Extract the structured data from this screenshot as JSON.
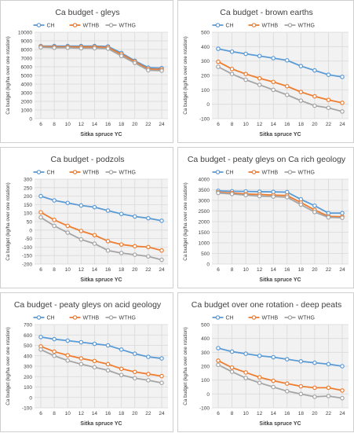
{
  "colors": {
    "CH": "#5b9bd5",
    "WTHB": "#ed7d31",
    "WTHG": "#a5a5a5",
    "grid": "#d9d9d9",
    "plot_bg": "#f2f2f2"
  },
  "chart_data": [
    {
      "type": "line",
      "title": "Ca budget - gleys",
      "xlabel": "Sitka spruce YC",
      "ylabel": "Ca budget (kg/ha over one rotation)",
      "x": [
        6,
        8,
        10,
        12,
        14,
        16,
        18,
        20,
        22,
        24
      ],
      "yticks": [
        0,
        1000,
        2000,
        3000,
        4000,
        5000,
        6000,
        7000,
        8000,
        9000,
        10000
      ],
      "ylim": [
        0,
        10000
      ],
      "legend": "top",
      "grid": true,
      "series": [
        {
          "name": "CH",
          "values": [
            8400,
            8400,
            8400,
            8400,
            8400,
            8350,
            7600,
            6700,
            5900,
            5850
          ]
        },
        {
          "name": "WTHB",
          "values": [
            8350,
            8300,
            8300,
            8300,
            8300,
            8250,
            7450,
            6600,
            5750,
            5700
          ]
        },
        {
          "name": "WTHG",
          "values": [
            8250,
            8200,
            8200,
            8150,
            8150,
            8100,
            7250,
            6450,
            5600,
            5550
          ]
        }
      ]
    },
    {
      "type": "line",
      "title": "Ca budget - brown earths",
      "xlabel": "Sitka spruce YC",
      "ylabel": "Ca budget (kg/ha over one rotation)",
      "x": [
        6,
        8,
        10,
        12,
        14,
        16,
        18,
        20,
        22,
        24
      ],
      "yticks": [
        -100,
        0,
        100,
        200,
        300,
        400,
        500
      ],
      "ylim": [
        -100,
        500
      ],
      "legend": "top",
      "grid": true,
      "series": [
        {
          "name": "CH",
          "values": [
            385,
            365,
            350,
            335,
            320,
            305,
            265,
            235,
            205,
            190
          ]
        },
        {
          "name": "WTHB",
          "values": [
            295,
            245,
            210,
            180,
            155,
            125,
            85,
            55,
            30,
            10
          ]
        },
        {
          "name": "WTHG",
          "values": [
            260,
            210,
            170,
            135,
            100,
            65,
            25,
            -10,
            -25,
            -50
          ]
        }
      ]
    },
    {
      "type": "line",
      "title": "Ca budget - podzols",
      "xlabel": "Sitka spruce YC",
      "ylabel": "Ca budget (kg/ha over one rotation)",
      "x": [
        6,
        8,
        10,
        12,
        14,
        16,
        18,
        20,
        22,
        24
      ],
      "yticks": [
        -200,
        -150,
        -100,
        -50,
        0,
        50,
        100,
        150,
        200,
        250,
        300
      ],
      "ylim": [
        -200,
        300
      ],
      "legend": "top",
      "grid": true,
      "series": [
        {
          "name": "CH",
          "values": [
            200,
            175,
            160,
            145,
            135,
            115,
            95,
            80,
            70,
            55
          ]
        },
        {
          "name": "WTHB",
          "values": [
            105,
            60,
            25,
            -5,
            -30,
            -65,
            -85,
            -95,
            -100,
            -120
          ]
        },
        {
          "name": "WTHG",
          "values": [
            75,
            25,
            -15,
            -55,
            -80,
            -120,
            -135,
            -145,
            -155,
            -175
          ]
        }
      ]
    },
    {
      "type": "line",
      "title": "Ca budget - peaty gleys on Ca rich geology",
      "xlabel": "Sitka spruce YC",
      "ylabel": "Ca budget (kg/ha over one rotation)",
      "x": [
        6,
        8,
        10,
        12,
        14,
        16,
        18,
        20,
        22,
        24
      ],
      "yticks": [
        0,
        500,
        1000,
        1500,
        2000,
        2500,
        3000,
        3500,
        4000
      ],
      "ylim": [
        0,
        4000
      ],
      "legend": "top",
      "grid": true,
      "series": [
        {
          "name": "CH",
          "values": [
            3450,
            3430,
            3420,
            3410,
            3400,
            3390,
            3050,
            2750,
            2400,
            2400
          ]
        },
        {
          "name": "WTHB",
          "values": [
            3380,
            3350,
            3300,
            3280,
            3250,
            3230,
            2900,
            2550,
            2250,
            2230
          ]
        },
        {
          "name": "WTHG",
          "values": [
            3350,
            3300,
            3250,
            3200,
            3180,
            3150,
            2800,
            2450,
            2200,
            2180
          ]
        }
      ]
    },
    {
      "type": "line",
      "title": "Ca budget - peaty gleys on acid geology",
      "xlabel": "Sitka spruce YC",
      "ylabel": "Ca budget (kg/ha over one rotation)",
      "x": [
        6,
        8,
        10,
        12,
        14,
        16,
        18,
        20,
        22,
        24
      ],
      "yticks": [
        -100,
        0,
        100,
        200,
        300,
        400,
        500,
        600,
        700
      ],
      "ylim": [
        -100,
        700
      ],
      "legend": "top",
      "grid": true,
      "series": [
        {
          "name": "CH",
          "values": [
            580,
            560,
            545,
            530,
            515,
            500,
            460,
            420,
            390,
            375
          ]
        },
        {
          "name": "WTHB",
          "values": [
            490,
            440,
            405,
            375,
            350,
            320,
            275,
            245,
            225,
            205
          ]
        },
        {
          "name": "WTHG",
          "values": [
            460,
            400,
            355,
            320,
            290,
            260,
            215,
            185,
            165,
            140
          ]
        }
      ]
    },
    {
      "type": "line",
      "title": "Ca budget over one rotation - deep peats",
      "xlabel": "Sitka spruce YC",
      "ylabel": "Ca budget (kg/ha over one rotation)",
      "x": [
        6,
        8,
        10,
        12,
        14,
        16,
        18,
        20,
        22,
        24
      ],
      "yticks": [
        -100,
        0,
        100,
        200,
        300,
        400,
        500
      ],
      "ylim": [
        -100,
        500
      ],
      "legend": "top",
      "grid": true,
      "series": [
        {
          "name": "CH",
          "values": [
            330,
            305,
            290,
            275,
            265,
            250,
            235,
            225,
            215,
            200
          ]
        },
        {
          "name": "WTHB",
          "values": [
            240,
            190,
            155,
            120,
            95,
            75,
            55,
            45,
            45,
            25
          ]
        },
        {
          "name": "WTHG",
          "values": [
            210,
            160,
            115,
            80,
            50,
            20,
            0,
            -20,
            -15,
            -30
          ]
        }
      ]
    }
  ]
}
